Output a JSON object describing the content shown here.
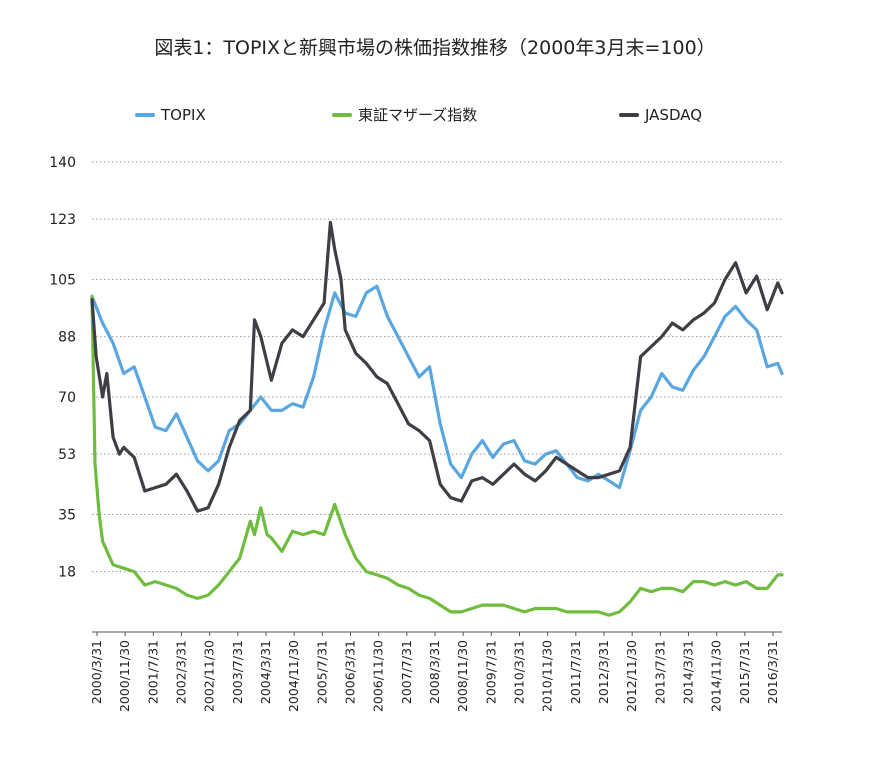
{
  "chart_data": {
    "type": "line",
    "title": "図表1：TOPIXと新興市場の株価指数推移（2000年3月末=100）",
    "xlabel": "",
    "ylabel": "",
    "ylim": [
      0,
      140
    ],
    "yticks": [
      "140",
      "123",
      "105",
      "88",
      "70",
      "53",
      "35",
      "18"
    ],
    "ytick_values": [
      140,
      123,
      105,
      88,
      70,
      53,
      35,
      18
    ],
    "grid": true,
    "legend_position": "top",
    "x_tick_labels": [
      "2000/3/31",
      "2000/11/30",
      "2001/7/31",
      "2002/3/31",
      "2002/11/30",
      "2003/7/31",
      "2004/3/31",
      "2004/11/30",
      "2005/7/31",
      "2006/3/31",
      "2006/11/30",
      "2007/7/31",
      "2008/3/31",
      "2008/11/30",
      "2009/7/31",
      "2010/3/31",
      "2010/11/30",
      "2011/7/31",
      "2012/3/31",
      "2012/11/30",
      "2013/7/31",
      "2014/3/31",
      "2014/11/30",
      "2015/7/31",
      "2016/3/31"
    ],
    "x_start": 2000.25,
    "x_end": 2016.6,
    "series": [
      {
        "name": "TOPIX",
        "color": "#5aa6e0",
        "x": [
          2000.25,
          2000.5,
          2000.75,
          2001.0,
          2001.25,
          2001.5,
          2001.75,
          2002.0,
          2002.25,
          2002.5,
          2002.75,
          2003.0,
          2003.25,
          2003.5,
          2003.75,
          2004.0,
          2004.25,
          2004.5,
          2004.75,
          2005.0,
          2005.25,
          2005.5,
          2005.75,
          2006.0,
          2006.25,
          2006.5,
          2006.75,
          2007.0,
          2007.25,
          2007.5,
          2007.75,
          2008.0,
          2008.25,
          2008.5,
          2008.75,
          2009.0,
          2009.25,
          2009.5,
          2009.75,
          2010.0,
          2010.25,
          2010.5,
          2010.75,
          2011.0,
          2011.25,
          2011.5,
          2011.75,
          2012.0,
          2012.25,
          2012.5,
          2012.75,
          2013.0,
          2013.25,
          2013.5,
          2013.75,
          2014.0,
          2014.25,
          2014.5,
          2014.75,
          2015.0,
          2015.25,
          2015.5,
          2015.75,
          2016.0,
          2016.25,
          2016.5,
          2016.6
        ],
        "values": [
          100,
          92,
          86,
          77,
          79,
          70,
          61,
          60,
          65,
          58,
          51,
          48,
          51,
          60,
          62,
          66,
          70,
          66,
          66,
          68,
          67,
          76,
          90,
          101,
          95,
          94,
          101,
          103,
          94,
          88,
          82,
          76,
          79,
          62,
          50,
          46,
          53,
          57,
          52,
          56,
          57,
          51,
          50,
          53,
          54,
          50,
          46,
          45,
          47,
          45,
          43,
          54,
          66,
          70,
          77,
          73,
          72,
          78,
          82,
          88,
          94,
          97,
          93,
          90,
          79,
          80,
          77
        ]
      },
      {
        "name": "東証マザーズ指数",
        "color": "#6fbd3f",
        "x": [
          2000.25,
          2000.32,
          2000.42,
          2000.5,
          2000.75,
          2001.0,
          2001.25,
          2001.5,
          2001.75,
          2002.0,
          2002.25,
          2002.5,
          2002.75,
          2003.0,
          2003.25,
          2003.5,
          2003.75,
          2004.0,
          2004.1,
          2004.25,
          2004.4,
          2004.5,
          2004.75,
          2005.0,
          2005.25,
          2005.5,
          2005.75,
          2006.0,
          2006.25,
          2006.5,
          2006.75,
          2007.0,
          2007.25,
          2007.5,
          2007.75,
          2008.0,
          2008.25,
          2008.5,
          2008.75,
          2009.0,
          2009.25,
          2009.5,
          2009.75,
          2010.0,
          2010.25,
          2010.5,
          2010.75,
          2011.0,
          2011.25,
          2011.5,
          2011.75,
          2012.0,
          2012.25,
          2012.5,
          2012.75,
          2013.0,
          2013.25,
          2013.5,
          2013.75,
          2014.0,
          2014.25,
          2014.5,
          2014.75,
          2015.0,
          2015.25,
          2015.5,
          2015.75,
          2016.0,
          2016.25,
          2016.5,
          2016.6
        ],
        "values": [
          100,
          50,
          35,
          27,
          20,
          19,
          18,
          14,
          15,
          14,
          13,
          11,
          10,
          11,
          14,
          18,
          22,
          33,
          29,
          37,
          29,
          28,
          24,
          30,
          29,
          30,
          29,
          38,
          29,
          22,
          18,
          17,
          16,
          14,
          13,
          11,
          10,
          8,
          6,
          6,
          7,
          8,
          8,
          8,
          7,
          6,
          7,
          7,
          7,
          6,
          6,
          6,
          6,
          5,
          6,
          9,
          13,
          12,
          13,
          13,
          12,
          15,
          15,
          14,
          15,
          14,
          15,
          13,
          13,
          17,
          17
        ]
      },
      {
        "name": "JASDAQ",
        "color": "#3d3f45",
        "x": [
          2000.25,
          2000.35,
          2000.5,
          2000.6,
          2000.75,
          2000.9,
          2001.0,
          2001.25,
          2001.5,
          2001.75,
          2002.0,
          2002.25,
          2002.5,
          2002.75,
          2003.0,
          2003.25,
          2003.5,
          2003.75,
          2004.0,
          2004.1,
          2004.25,
          2004.5,
          2004.75,
          2005.0,
          2005.25,
          2005.5,
          2005.75,
          2005.9,
          2006.0,
          2006.15,
          2006.25,
          2006.5,
          2006.75,
          2007.0,
          2007.25,
          2007.5,
          2007.75,
          2008.0,
          2008.25,
          2008.5,
          2008.75,
          2009.0,
          2009.25,
          2009.5,
          2009.75,
          2010.0,
          2010.25,
          2010.5,
          2010.75,
          2011.0,
          2011.25,
          2011.5,
          2011.75,
          2012.0,
          2012.25,
          2012.5,
          2012.75,
          2013.0,
          2013.25,
          2013.5,
          2013.75,
          2014.0,
          2014.25,
          2014.5,
          2014.75,
          2015.0,
          2015.25,
          2015.5,
          2015.75,
          2016.0,
          2016.25,
          2016.5,
          2016.6
        ],
        "values": [
          99,
          82,
          70,
          77,
          58,
          53,
          55,
          52,
          42,
          43,
          44,
          47,
          42,
          36,
          37,
          44,
          55,
          63,
          66,
          93,
          88,
          75,
          86,
          90,
          88,
          93,
          98,
          122,
          114,
          105,
          90,
          83,
          80,
          76,
          74,
          68,
          62,
          60,
          57,
          44,
          40,
          39,
          45,
          46,
          44,
          47,
          50,
          47,
          45,
          48,
          52,
          50,
          48,
          46,
          46,
          47,
          48,
          55,
          82,
          85,
          88,
          92,
          90,
          93,
          95,
          98,
          105,
          110,
          101,
          106,
          96,
          104,
          101
        ]
      }
    ]
  }
}
